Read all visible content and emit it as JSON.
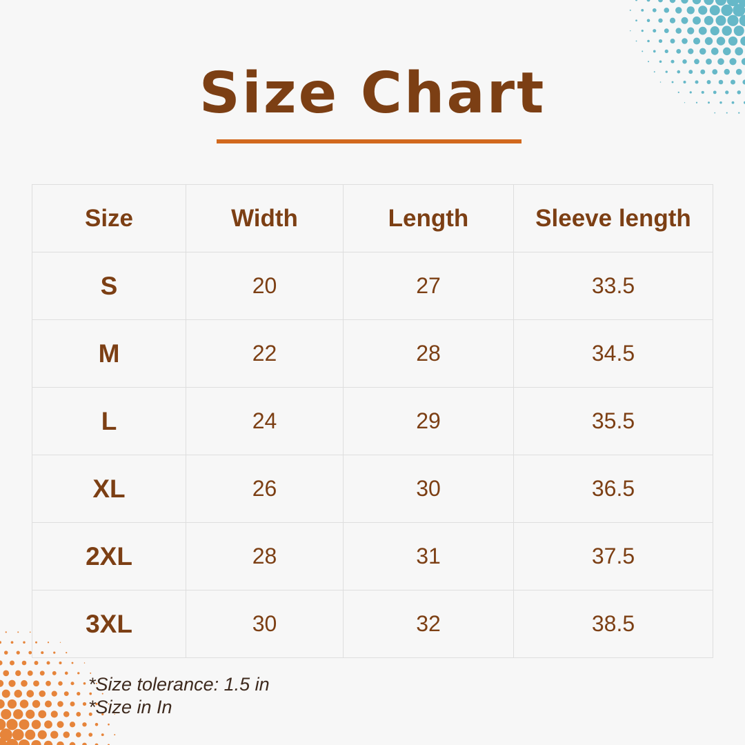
{
  "title": "Size Chart",
  "colors": {
    "text": "#7c3f14",
    "accent": "#d2691e",
    "dots_top_right": "#66b8c8",
    "dots_bottom_left": "#e6843a"
  },
  "table": {
    "headers": [
      "Size",
      "Width",
      "Length",
      "Sleeve length"
    ],
    "rows": [
      [
        "S",
        "20",
        "27",
        "33.5"
      ],
      [
        "M",
        "22",
        "28",
        "34.5"
      ],
      [
        "L",
        "24",
        "29",
        "35.5"
      ],
      [
        "XL",
        "26",
        "30",
        "36.5"
      ],
      [
        "2XL",
        "28",
        "31",
        "37.5"
      ],
      [
        "3XL",
        "30",
        "32",
        "38.5"
      ]
    ]
  },
  "notes": [
    "*Size tolerance: 1.5 in",
    "*Size in In"
  ]
}
